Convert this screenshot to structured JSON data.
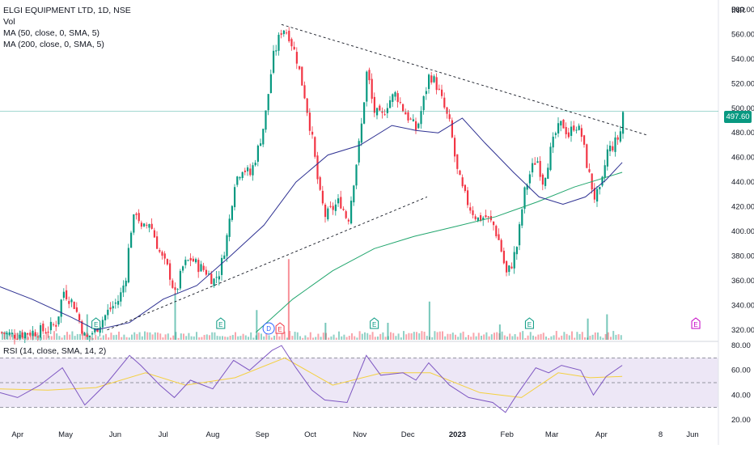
{
  "header": {
    "symbol_title": "ELGI EQUIPMENT LTD, 1D, NSE",
    "vol_label": "Vol",
    "ma50_label": "MA (50, close, 0, SMA, 5)",
    "ma200_label": "MA (200, close, 0, SMA, 5)",
    "rsi_label": "RSI (14, close, SMA, 14, 2)",
    "currency": "INR"
  },
  "last_price": {
    "label": "497.60",
    "value": 497.6
  },
  "colors": {
    "up": "#089981",
    "down": "#f23645",
    "ma50": "#2e3192",
    "ma200": "#22a66e",
    "rsi": "#7e57c2",
    "rsi_ma": "#f4d03f",
    "rsi_band": "#ede7f6",
    "trendline": "#131722"
  },
  "chart_data": [
    {
      "type": "candlestick",
      "title": "ELGI EQUIPMENT LTD, 1D, NSE",
      "y_axis": {
        "ylim": [
          312,
          580
        ],
        "ticks": [
          320,
          340,
          360,
          380,
          400,
          420,
          440,
          460,
          480,
          500,
          520,
          540,
          560,
          580
        ],
        "tick_labels": [
          "320.00",
          "340.00",
          "360.00",
          "380.00",
          "400.00",
          "420.00",
          "440.00",
          "460.00",
          "480.00",
          "500.00",
          "520.00",
          "540.00",
          "560.00",
          "580.00"
        ]
      },
      "x_axis": {
        "labels": [
          "Apr",
          "May",
          "Jun",
          "Jul",
          "Aug",
          "Sep",
          "Oct",
          "Nov",
          "Dec",
          "2023",
          "Feb",
          "Mar",
          "Apr",
          "8",
          "Jun"
        ]
      },
      "price_path": [
        [
          "2022-03-21",
          318
        ],
        [
          "2022-03-28",
          316
        ],
        [
          "2022-04-08",
          318
        ],
        [
          "2022-04-19",
          320
        ],
        [
          "2022-04-25",
          326
        ],
        [
          "2022-04-29",
          352
        ],
        [
          "2022-05-06",
          340
        ],
        [
          "2022-05-13",
          312
        ],
        [
          "2022-05-20",
          322
        ],
        [
          "2022-05-27",
          335
        ],
        [
          "2022-06-03",
          345
        ],
        [
          "2022-06-07",
          362
        ],
        [
          "2022-06-10",
          400
        ],
        [
          "2022-06-14",
          418
        ],
        [
          "2022-06-17",
          400
        ],
        [
          "2022-06-22",
          408
        ],
        [
          "2022-06-29",
          380
        ],
        [
          "2022-07-04",
          368
        ],
        [
          "2022-07-08",
          348
        ],
        [
          "2022-07-13",
          372
        ],
        [
          "2022-07-18",
          378
        ],
        [
          "2022-07-22",
          372
        ],
        [
          "2022-07-27",
          368
        ],
        [
          "2022-08-01",
          360
        ],
        [
          "2022-08-05",
          368
        ],
        [
          "2022-08-10",
          400
        ],
        [
          "2022-08-14",
          440
        ],
        [
          "2022-08-19",
          452
        ],
        [
          "2022-08-24",
          446
        ],
        [
          "2022-08-29",
          468
        ],
        [
          "2022-09-02",
          490
        ],
        [
          "2022-09-07",
          540
        ],
        [
          "2022-09-13",
          566
        ],
        [
          "2022-09-17",
          560
        ],
        [
          "2022-09-22",
          540
        ],
        [
          "2022-09-27",
          510
        ],
        [
          "2022-10-02",
          472
        ],
        [
          "2022-10-06",
          432
        ],
        [
          "2022-10-10",
          412
        ],
        [
          "2022-10-14",
          418
        ],
        [
          "2022-10-19",
          425
        ],
        [
          "2022-10-24",
          408
        ],
        [
          "2022-10-28",
          445
        ],
        [
          "2022-11-01",
          480
        ],
        [
          "2022-11-05",
          532
        ],
        [
          "2022-11-09",
          498
        ],
        [
          "2022-11-14",
          492
        ],
        [
          "2022-11-18",
          505
        ],
        [
          "2022-11-23",
          512
        ],
        [
          "2022-11-28",
          498
        ],
        [
          "2022-12-02",
          490
        ],
        [
          "2022-12-06",
          482
        ],
        [
          "2022-12-10",
          505
        ],
        [
          "2022-12-14",
          528
        ],
        [
          "2022-12-18",
          520
        ],
        [
          "2022-12-22",
          505
        ],
        [
          "2022-12-27",
          485
        ],
        [
          "2022-12-31",
          450
        ],
        [
          "2023-01-04",
          432
        ],
        [
          "2023-01-08",
          420
        ],
        [
          "2023-01-13",
          410
        ],
        [
          "2023-01-18",
          412
        ],
        [
          "2023-01-23",
          405
        ],
        [
          "2023-01-27",
          390
        ],
        [
          "2023-01-31",
          365
        ],
        [
          "2023-02-03",
          372
        ],
        [
          "2023-02-07",
          390
        ],
        [
          "2023-02-11",
          430
        ],
        [
          "2023-02-15",
          448
        ],
        [
          "2023-02-19",
          460
        ],
        [
          "2023-02-23",
          440
        ],
        [
          "2023-02-27",
          462
        ],
        [
          "2023-03-03",
          480
        ],
        [
          "2023-03-07",
          488
        ],
        [
          "2023-03-11",
          478
        ],
        [
          "2023-03-15",
          488
        ],
        [
          "2023-03-19",
          478
        ],
        [
          "2023-03-23",
          450
        ],
        [
          "2023-03-27",
          428
        ],
        [
          "2023-03-31",
          432
        ],
        [
          "2023-04-04",
          465
        ],
        [
          "2023-04-08",
          470
        ],
        [
          "2023-04-12",
          478
        ],
        [
          "2023-04-14",
          497.6
        ]
      ],
      "ma50_path": [
        [
          "2022-03-21",
          355
        ],
        [
          "2022-04-10",
          345
        ],
        [
          "2022-05-05",
          330
        ],
        [
          "2022-05-20",
          320
        ],
        [
          "2022-06-10",
          326
        ],
        [
          "2022-07-01",
          345
        ],
        [
          "2022-07-22",
          356
        ],
        [
          "2022-08-12",
          380
        ],
        [
          "2022-09-02",
          405
        ],
        [
          "2022-09-22",
          440
        ],
        [
          "2022-10-12",
          462
        ],
        [
          "2022-11-01",
          470
        ],
        [
          "2022-11-21",
          486
        ],
        [
          "2022-12-06",
          482
        ],
        [
          "2022-12-20",
          480
        ],
        [
          "2023-01-04",
          492
        ],
        [
          "2023-01-18",
          472
        ],
        [
          "2023-02-05",
          448
        ],
        [
          "2023-02-21",
          428
        ],
        [
          "2023-03-08",
          422
        ],
        [
          "2023-03-22",
          428
        ],
        [
          "2023-04-04",
          442
        ],
        [
          "2023-04-14",
          456
        ]
      ],
      "ma200_path": [
        [
          "2022-08-28",
          318
        ],
        [
          "2022-09-20",
          345
        ],
        [
          "2022-10-15",
          368
        ],
        [
          "2022-11-10",
          386
        ],
        [
          "2022-12-05",
          396
        ],
        [
          "2022-12-31",
          404
        ],
        [
          "2023-01-25",
          412
        ],
        [
          "2023-02-20",
          424
        ],
        [
          "2023-03-15",
          436
        ],
        [
          "2023-04-14",
          448
        ]
      ],
      "trendlines": [
        {
          "from": [
            "2022-09-13",
            568
          ],
          "to": [
            "2023-04-30",
            478
          ],
          "style": "dashed"
        },
        {
          "from": [
            "2022-05-27",
            320
          ],
          "to": [
            "2022-12-13",
            428
          ],
          "style": "dashed"
        }
      ],
      "earnings_markers": [
        "2022-05-20",
        "2022-08-06",
        "2022-11-10",
        "2023-02-15",
        "2023-05-30"
      ],
      "dividend_markers": [
        "2022-09-08"
      ],
      "volume_spikes": [
        [
          "2022-05-14",
          0.3
        ],
        [
          "2022-07-08",
          0.55
        ],
        [
          "2022-08-28",
          0.35
        ],
        [
          "2022-09-17",
          0.95
        ],
        [
          "2022-10-10",
          0.2
        ],
        [
          "2022-11-18",
          0.2
        ],
        [
          "2022-12-14",
          0.45
        ],
        [
          "2023-01-27",
          0.18
        ],
        [
          "2023-03-23",
          0.25
        ],
        [
          "2023-04-04",
          0.3
        ]
      ]
    },
    {
      "type": "line",
      "title": "RSI (14, close, SMA, 14, 2)",
      "y_axis": {
        "ylim": [
          18,
          82
        ],
        "ticks": [
          20,
          40,
          60,
          80
        ],
        "tick_labels": [
          "20.00",
          "40.00",
          "60.00",
          "80.00"
        ],
        "bands": [
          30,
          70
        ],
        "midline": 50
      },
      "rsi_path": [
        [
          "2022-03-21",
          42
        ],
        [
          "2022-04-01",
          38
        ],
        [
          "2022-04-15",
          48
        ],
        [
          "2022-04-29",
          62
        ],
        [
          "2022-05-13",
          32
        ],
        [
          "2022-05-27",
          50
        ],
        [
          "2022-06-10",
          72
        ],
        [
          "2022-06-17",
          64
        ],
        [
          "2022-06-29",
          48
        ],
        [
          "2022-07-08",
          38
        ],
        [
          "2022-07-18",
          52
        ],
        [
          "2022-08-01",
          45
        ],
        [
          "2022-08-14",
          68
        ],
        [
          "2022-08-24",
          60
        ],
        [
          "2022-09-07",
          76
        ],
        [
          "2022-09-13",
          80
        ],
        [
          "2022-09-22",
          62
        ],
        [
          "2022-10-02",
          44
        ],
        [
          "2022-10-10",
          36
        ],
        [
          "2022-10-24",
          34
        ],
        [
          "2022-11-05",
          72
        ],
        [
          "2022-11-14",
          56
        ],
        [
          "2022-11-28",
          58
        ],
        [
          "2022-12-06",
          52
        ],
        [
          "2022-12-14",
          66
        ],
        [
          "2022-12-27",
          48
        ],
        [
          "2023-01-08",
          38
        ],
        [
          "2023-01-23",
          34
        ],
        [
          "2023-01-31",
          26
        ],
        [
          "2023-02-07",
          40
        ],
        [
          "2023-02-19",
          62
        ],
        [
          "2023-02-27",
          58
        ],
        [
          "2023-03-07",
          64
        ],
        [
          "2023-03-19",
          60
        ],
        [
          "2023-03-27",
          40
        ],
        [
          "2023-04-04",
          55
        ],
        [
          "2023-04-14",
          64
        ]
      ],
      "rsi_ma_path": [
        [
          "2022-03-21",
          45
        ],
        [
          "2022-04-20",
          44
        ],
        [
          "2022-05-20",
          46
        ],
        [
          "2022-06-20",
          58
        ],
        [
          "2022-07-15",
          48
        ],
        [
          "2022-08-15",
          54
        ],
        [
          "2022-09-15",
          70
        ],
        [
          "2022-10-15",
          48
        ],
        [
          "2022-11-15",
          58
        ],
        [
          "2022-12-15",
          58
        ],
        [
          "2023-01-15",
          42
        ],
        [
          "2023-02-10",
          38
        ],
        [
          "2023-03-05",
          58
        ],
        [
          "2023-03-25",
          54
        ],
        [
          "2023-04-14",
          55
        ]
      ]
    }
  ]
}
